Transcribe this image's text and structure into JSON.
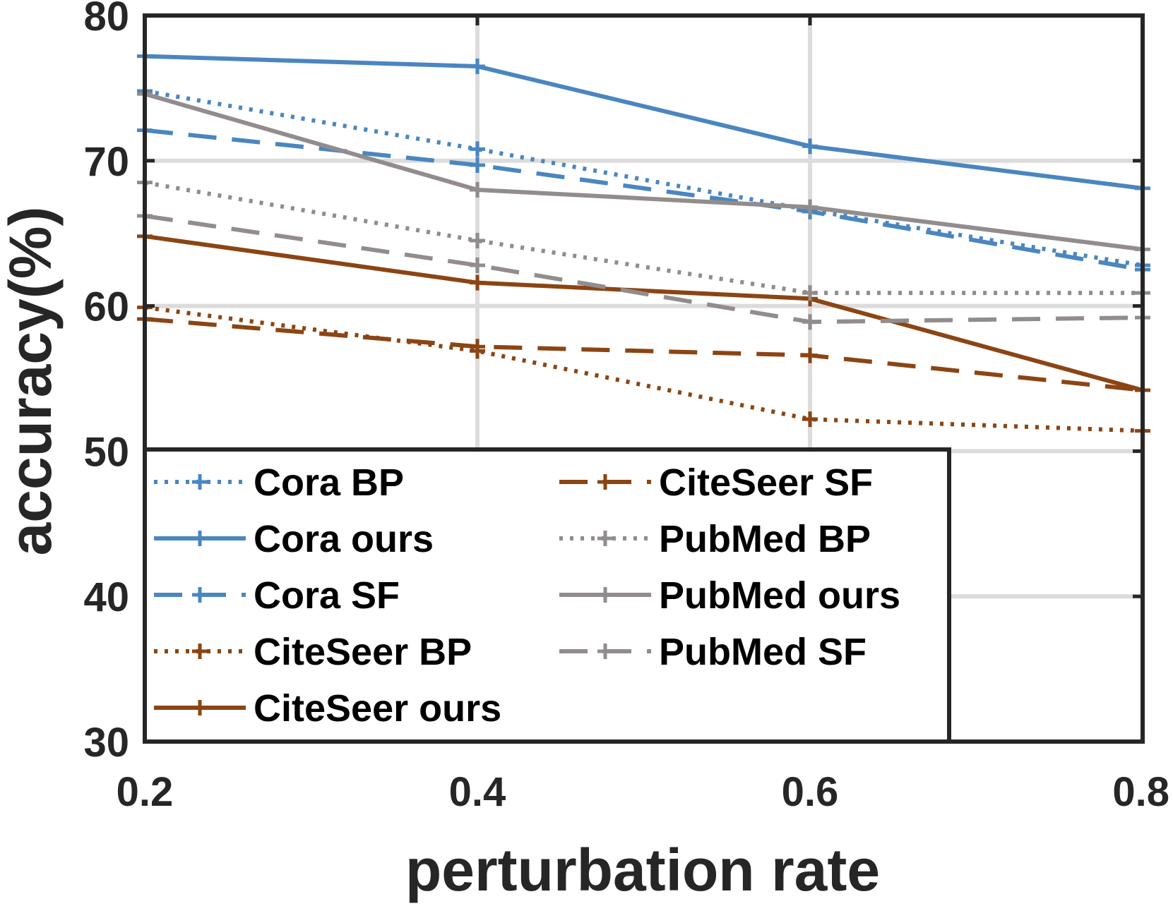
{
  "chart_data": {
    "type": "line",
    "title": "",
    "xlabel": "perturbation rate",
    "ylabel": "accuracy(%)",
    "x": [
      0.2,
      0.4,
      0.6,
      0.8
    ],
    "x_tick_labels": [
      "0.2",
      "0.4",
      "0.6",
      "0.8"
    ],
    "y_tick_labels": [
      "30",
      "40",
      "50",
      "60",
      "70",
      "80"
    ],
    "xlim": [
      0.2,
      0.8
    ],
    "ylim": [
      30,
      80
    ],
    "grid": true,
    "legend_placement": "lower-left",
    "series": [
      {
        "name": "Cora BP",
        "values": [
          74.8,
          70.8,
          66.6,
          62.8
        ],
        "color": "#4a86c0",
        "style": "dotted",
        "marker": "plus"
      },
      {
        "name": "Cora ours",
        "values": [
          77.2,
          76.5,
          71.0,
          68.1
        ],
        "color": "#4a86c0",
        "style": "solid",
        "marker": "plus"
      },
      {
        "name": "Cora SF",
        "values": [
          72.1,
          69.7,
          66.5,
          62.5
        ],
        "color": "#4a86c0",
        "style": "dashed",
        "marker": "plus"
      },
      {
        "name": "CiteSeer BP",
        "values": [
          59.9,
          56.9,
          52.2,
          51.4
        ],
        "color": "#8b4513",
        "style": "dotted",
        "marker": "plus"
      },
      {
        "name": "CiteSeer ours",
        "values": [
          64.8,
          61.6,
          60.5,
          54.2
        ],
        "color": "#8b4513",
        "style": "solid",
        "marker": "plus"
      },
      {
        "name": "CiteSeer SF",
        "values": [
          59.1,
          57.2,
          56.6,
          54.2
        ],
        "color": "#8b4513",
        "style": "dashed",
        "marker": "plus"
      },
      {
        "name": "PubMed BP",
        "values": [
          68.5,
          64.5,
          60.9,
          60.9
        ],
        "color": "#928c8c",
        "style": "dotted",
        "marker": "plus"
      },
      {
        "name": "PubMed ours",
        "values": [
          74.6,
          68.0,
          66.8,
          63.9
        ],
        "color": "#928c8c",
        "style": "solid",
        "marker": "plus"
      },
      {
        "name": "PubMed SF",
        "values": [
          66.2,
          62.8,
          58.9,
          59.2
        ],
        "color": "#928c8c",
        "style": "dashed",
        "marker": "plus"
      }
    ]
  }
}
